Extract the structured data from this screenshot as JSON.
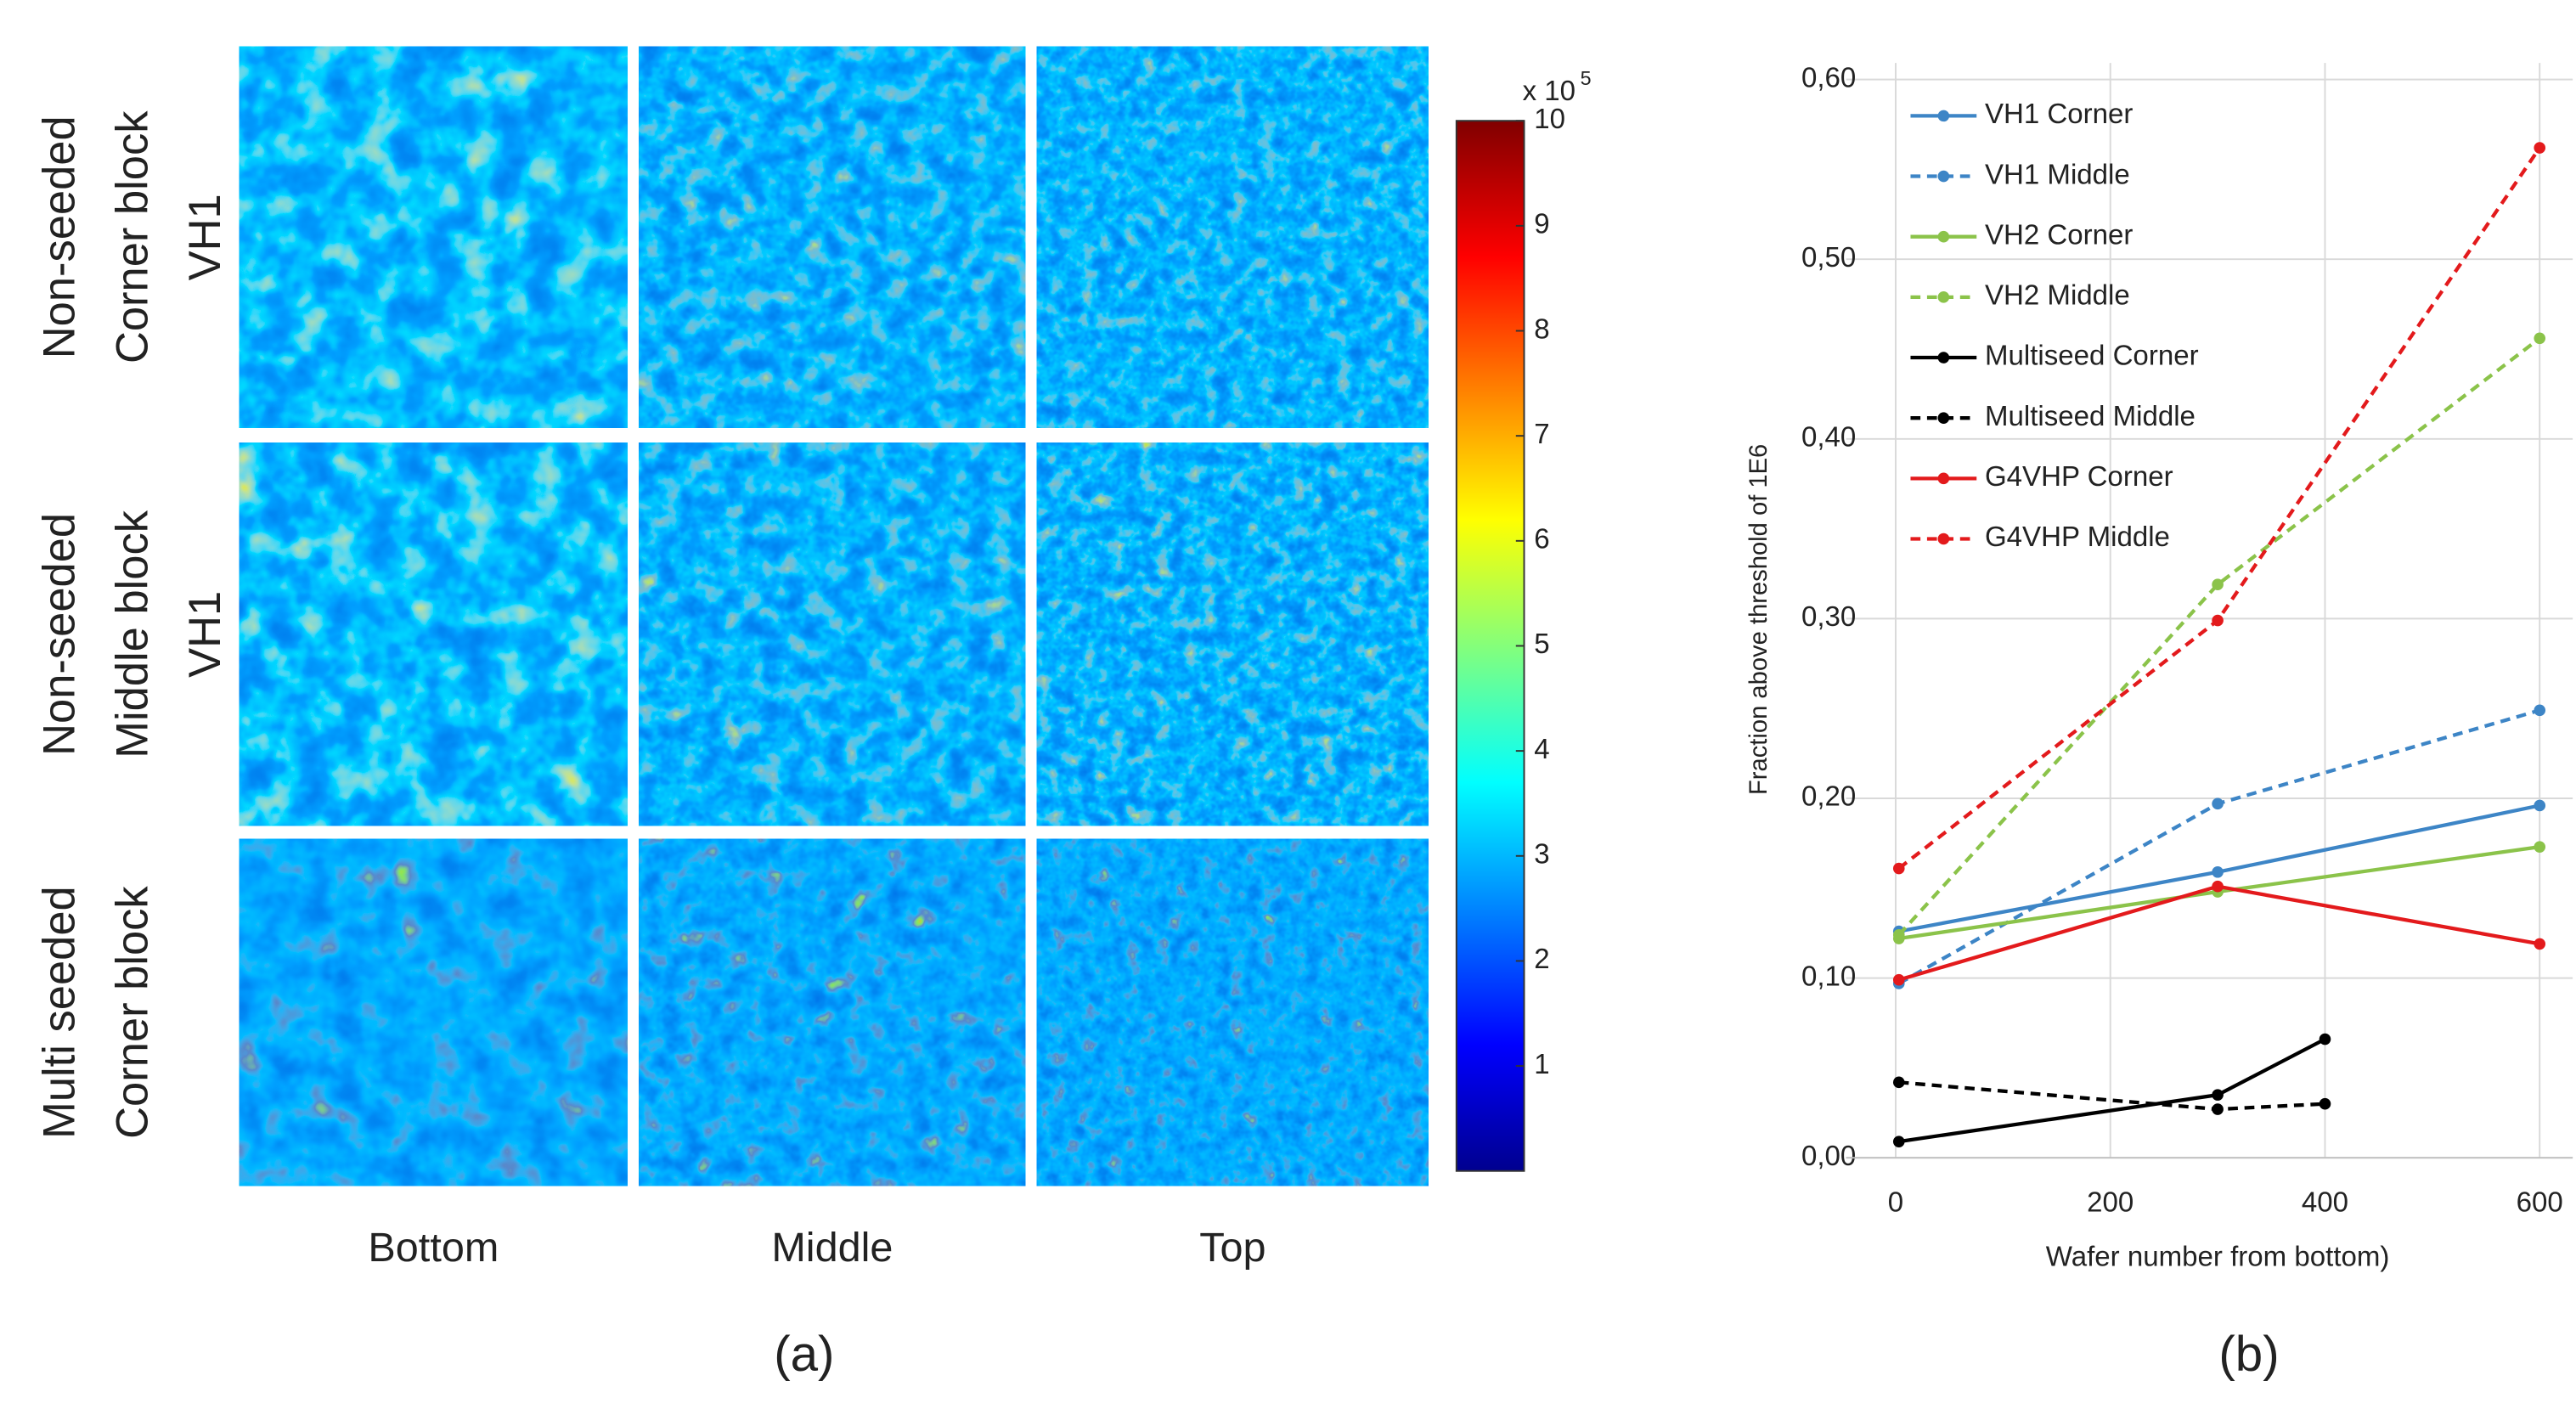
{
  "chart_data": [
    {
      "type": "image-grid",
      "row_labels": [
        [
          "Non-seeded",
          "Corner block",
          "VH1"
        ],
        [
          "Non-seeded",
          "Middle block",
          "VH1"
        ],
        [
          "Multi seeded",
          "Corner block"
        ]
      ],
      "column_labels": [
        "Bottom",
        "Middle",
        "Top"
      ],
      "colorbar_label": "x 10",
      "colorbar_exponent": "5",
      "clim": [
        0,
        10
      ],
      "colorbar_ticks": [
        1,
        2,
        3,
        4,
        5,
        6,
        7,
        8,
        9,
        10
      ],
      "caption": "(a)"
    },
    {
      "type": "line",
      "xlabel": "Wafer number from bottom)",
      "ylabel": "Fraction above threshold of 1E6",
      "xlim": [
        0,
        600
      ],
      "xticks": [
        0,
        200,
        400,
        600
      ],
      "ylim": [
        0,
        0.6
      ],
      "yticks": [
        {
          "value": 0,
          "label": "0,00"
        },
        {
          "value": 0.1,
          "label": "0,10"
        },
        {
          "value": 0.2,
          "label": "0,20"
        },
        {
          "value": 0.3,
          "label": "0,30"
        },
        {
          "value": 0.4,
          "label": "0,40"
        },
        {
          "value": 0.5,
          "label": "0,50"
        },
        {
          "value": 0.6,
          "label": "0,60"
        }
      ],
      "grid": true,
      "legend": "upper left",
      "series": [
        {
          "name": "VH1 Corner",
          "color": "#3d85c6",
          "dashed": false,
          "x": [
            3,
            300,
            600
          ],
          "values": [
            0.126,
            0.159,
            0.196
          ]
        },
        {
          "name": "VH1 Middle",
          "color": "#3d85c6",
          "dashed": true,
          "x": [
            3,
            300,
            600
          ],
          "values": [
            0.097,
            0.197,
            0.249
          ]
        },
        {
          "name": "VH2 Corner",
          "color": "#8bc34a",
          "dashed": false,
          "x": [
            3,
            300,
            600
          ],
          "values": [
            0.122,
            0.148,
            0.173
          ]
        },
        {
          "name": "VH2 Middle",
          "color": "#8bc34a",
          "dashed": true,
          "x": [
            3,
            300,
            600
          ],
          "values": [
            0.124,
            0.319,
            0.456
          ]
        },
        {
          "name": "Multiseed Corner",
          "color": "#000000",
          "dashed": false,
          "x": [
            3,
            300,
            400
          ],
          "values": [
            0.009,
            0.035,
            0.066
          ]
        },
        {
          "name": "Multiseed Middle",
          "color": "#000000",
          "dashed": true,
          "x": [
            3,
            300,
            400
          ],
          "values": [
            0.042,
            0.027,
            0.03
          ]
        },
        {
          "name": "G4VHP Corner",
          "color": "#e31a1c",
          "dashed": false,
          "x": [
            3,
            300,
            600
          ],
          "values": [
            0.099,
            0.151,
            0.119
          ]
        },
        {
          "name": "G4VHP Middle",
          "color": "#e31a1c",
          "dashed": true,
          "x": [
            3,
            300,
            600
          ],
          "values": [
            0.161,
            0.299,
            0.562
          ]
        }
      ],
      "caption": "(b)"
    }
  ]
}
